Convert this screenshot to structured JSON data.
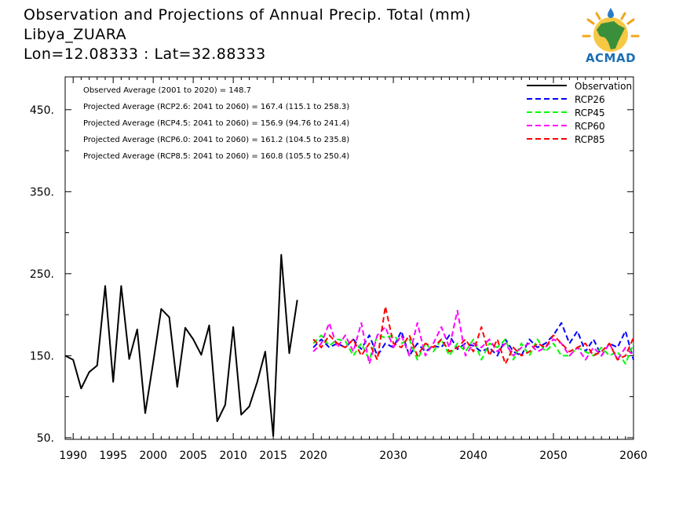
{
  "titles": {
    "line1": "Observation and Projections of Annual Precip. Total (mm)",
    "line2": "Libya_ZUARA",
    "line3": "Lon=12.08333 : Lat=32.88333"
  },
  "logo": {
    "text": "ACMAD",
    "icon": "africa-map-sun-icon"
  },
  "annotations": [
    "Observed Average (2001 to 2020) = 148.7",
    "Projected Average (RCP2.6: 2041 to 2060) = 167.4 (115.1 to 258.3)",
    "Projected Average (RCP4.5: 2041 to 2060) = 156.9 (94.76 to 241.4)",
    "Projected Average (RCP6.0: 2041 to 2060) = 161.2 (104.5 to 235.8)",
    "Projected Average (RCP8.5: 2041 to 2060) = 160.8 (105.5 to 250.4)"
  ],
  "chart_data": {
    "type": "line",
    "xlim": [
      1989,
      2060
    ],
    "ylim": [
      48,
      490
    ],
    "x_ticks": [
      1990,
      1995,
      2000,
      2005,
      2010,
      2015,
      2020,
      2030,
      2040,
      2050,
      2060
    ],
    "y_ticks": [
      50,
      150,
      250,
      350,
      450
    ],
    "y_tick_labels": [
      "50.",
      "150.",
      "250.",
      "350.",
      "450."
    ],
    "legend_position": "top-right",
    "series": [
      {
        "name": "Observation",
        "color": "#000000",
        "dash": "solid",
        "x": [
          1989,
          1990,
          1991,
          1992,
          1993,
          1994,
          1995,
          1996,
          1997,
          1998,
          1999,
          2000,
          2001,
          2002,
          2003,
          2004,
          2005,
          2006,
          2007,
          2008,
          2009,
          2010,
          2011,
          2012,
          2013,
          2014,
          2015,
          2016,
          2017,
          2018,
          2019
        ],
        "y": [
          150,
          145,
          110,
          130,
          138,
          235,
          118,
          235,
          146,
          182,
          80,
          142,
          207,
          197,
          112,
          184,
          170,
          151,
          187,
          70,
          90,
          185,
          78,
          88,
          118,
          155,
          52,
          273,
          153,
          218,
          null
        ]
      },
      {
        "name": "RCP26",
        "color": "#0000ff",
        "dash": "dashed",
        "x": [
          2020,
          2021,
          2022,
          2023,
          2024,
          2025,
          2026,
          2027,
          2028,
          2029,
          2030,
          2031,
          2032,
          2033,
          2034,
          2035,
          2036,
          2037,
          2038,
          2039,
          2040,
          2041,
          2042,
          2043,
          2044,
          2045,
          2046,
          2047,
          2048,
          2049,
          2050,
          2051,
          2052,
          2053,
          2054,
          2055,
          2056,
          2057,
          2058,
          2059,
          2060
        ],
        "y": [
          160,
          170,
          160,
          165,
          160,
          170,
          158,
          175,
          150,
          165,
          160,
          180,
          150,
          165,
          155,
          162,
          160,
          175,
          158,
          165,
          162,
          155,
          160,
          150,
          170,
          155,
          150,
          170,
          160,
          165,
          175,
          190,
          165,
          180,
          155,
          170,
          150,
          165,
          160,
          180,
          145
        ]
      },
      {
        "name": "RCP45",
        "color": "#00ff00",
        "dash": "dashed",
        "x": [
          2020,
          2021,
          2022,
          2023,
          2024,
          2025,
          2026,
          2027,
          2028,
          2029,
          2030,
          2031,
          2032,
          2033,
          2034,
          2035,
          2036,
          2037,
          2038,
          2039,
          2040,
          2041,
          2042,
          2043,
          2044,
          2045,
          2046,
          2047,
          2048,
          2049,
          2050,
          2051,
          2052,
          2053,
          2054,
          2055,
          2056,
          2057,
          2058,
          2059,
          2060
        ],
        "y": [
          165,
          175,
          162,
          170,
          168,
          150,
          165,
          145,
          175,
          172,
          175,
          165,
          170,
          145,
          165,
          155,
          170,
          150,
          165,
          155,
          170,
          145,
          165,
          160,
          170,
          145,
          165,
          150,
          170,
          155,
          165,
          150,
          150,
          160,
          155,
          150,
          160,
          150,
          155,
          140,
          165
        ]
      },
      {
        "name": "RCP60",
        "color": "#ff00ff",
        "dash": "dashed",
        "x": [
          2020,
          2021,
          2022,
          2023,
          2024,
          2025,
          2026,
          2027,
          2028,
          2029,
          2030,
          2031,
          2032,
          2033,
          2034,
          2035,
          2036,
          2037,
          2038,
          2039,
          2040,
          2041,
          2042,
          2043,
          2044,
          2045,
          2046,
          2047,
          2048,
          2049,
          2050,
          2051,
          2052,
          2053,
          2054,
          2055,
          2056,
          2057,
          2058,
          2059,
          2060
        ],
        "y": [
          155,
          165,
          190,
          160,
          175,
          155,
          190,
          140,
          175,
          185,
          160,
          175,
          150,
          190,
          150,
          165,
          185,
          160,
          205,
          150,
          165,
          160,
          170,
          155,
          165,
          150,
          160,
          165,
          155,
          160,
          170,
          165,
          150,
          160,
          145,
          160,
          150,
          165,
          145,
          160,
          150
        ]
      },
      {
        "name": "RCP85",
        "color": "#ff0000",
        "dash": "dashed",
        "x": [
          2020,
          2021,
          2022,
          2023,
          2024,
          2025,
          2026,
          2027,
          2028,
          2029,
          2030,
          2031,
          2032,
          2033,
          2034,
          2035,
          2036,
          2037,
          2038,
          2039,
          2040,
          2041,
          2042,
          2043,
          2044,
          2045,
          2046,
          2047,
          2048,
          2049,
          2050,
          2051,
          2052,
          2053,
          2054,
          2055,
          2056,
          2057,
          2058,
          2059,
          2060
        ],
        "y": [
          170,
          160,
          175,
          165,
          160,
          170,
          150,
          165,
          145,
          210,
          165,
          160,
          175,
          150,
          165,
          160,
          170,
          155,
          160,
          170,
          155,
          185,
          150,
          170,
          140,
          160,
          150,
          155,
          165,
          160,
          175,
          165,
          155,
          160,
          165,
          150,
          155,
          165,
          145,
          150,
          172
        ]
      }
    ]
  }
}
